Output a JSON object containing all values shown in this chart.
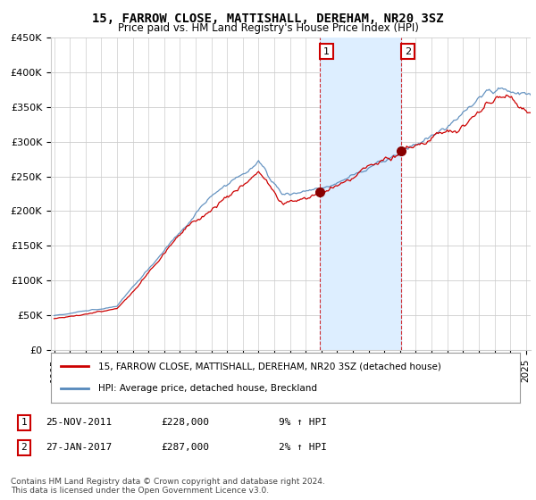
{
  "title": "15, FARROW CLOSE, MATTISHALL, DEREHAM, NR20 3SZ",
  "subtitle": "Price paid vs. HM Land Registry's House Price Index (HPI)",
  "ylabel_ticks": [
    "£0",
    "£50K",
    "£100K",
    "£150K",
    "£200K",
    "£250K",
    "£300K",
    "£350K",
    "£400K",
    "£450K"
  ],
  "ytick_vals": [
    0,
    50000,
    100000,
    150000,
    200000,
    250000,
    300000,
    350000,
    400000,
    450000
  ],
  "ylim": [
    0,
    450000
  ],
  "xlim_start": 1994.8,
  "xlim_end": 2025.3,
  "sale1_year": 2011.9,
  "sale1_price": 228000,
  "sale1_label": "1",
  "sale2_year": 2017.08,
  "sale2_price": 287000,
  "sale2_label": "2",
  "red_color": "#cc0000",
  "blue_color": "#5588bb",
  "shade_color": "#ddeeff",
  "dot_color": "#880000",
  "footer": "Contains HM Land Registry data © Crown copyright and database right 2024.\nThis data is licensed under the Open Government Licence v3.0.",
  "legend_red": "15, FARROW CLOSE, MATTISHALL, DEREHAM, NR20 3SZ (detached house)",
  "legend_blue": "HPI: Average price, detached house, Breckland",
  "background_color": "#ffffff",
  "grid_color": "#cccccc",
  "sale1_text_date": "25-NOV-2011",
  "sale1_text_price": "£228,000",
  "sale1_text_hpi": "9% ↑ HPI",
  "sale2_text_date": "27-JAN-2017",
  "sale2_text_price": "£287,000",
  "sale2_text_hpi": "2% ↑ HPI"
}
